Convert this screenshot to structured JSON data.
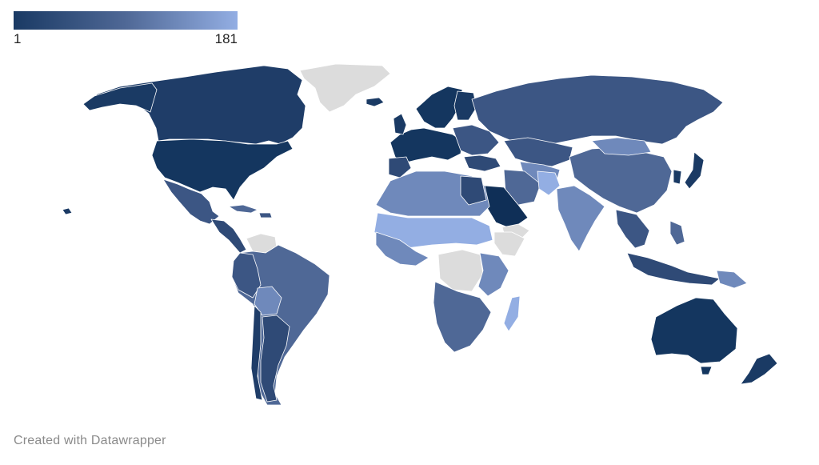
{
  "legend": {
    "min_label": "1",
    "max_label": "181",
    "color_low": "#1a3a64",
    "color_mid": "#4f6896",
    "color_high": "#93aee3",
    "no_data_color": "#dcdcdc"
  },
  "map": {
    "type": "choropleth-world",
    "border_color": "#ffffff"
  },
  "footer": {
    "credit": "Created with Datawrapper"
  }
}
